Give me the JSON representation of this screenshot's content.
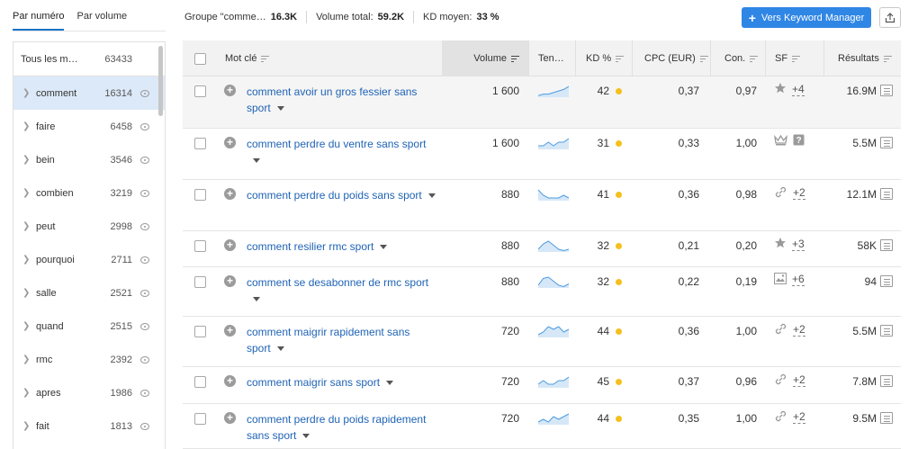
{
  "sort_tabs": {
    "by_number": "Par numéro",
    "by_volume": "Par volume"
  },
  "groups": {
    "all": {
      "label": "Tous les m…",
      "count": "63433"
    },
    "items": [
      {
        "label": "comment",
        "count": "16314",
        "active": true
      },
      {
        "label": "faire",
        "count": "6458"
      },
      {
        "label": "bein",
        "count": "3546"
      },
      {
        "label": "combien",
        "count": "3219"
      },
      {
        "label": "peut",
        "count": "2998"
      },
      {
        "label": "pourquoi",
        "count": "2711"
      },
      {
        "label": "salle",
        "count": "2521"
      },
      {
        "label": "quand",
        "count": "2515"
      },
      {
        "label": "rmc",
        "count": "2392"
      },
      {
        "label": "apres",
        "count": "1986"
      },
      {
        "label": "fait",
        "count": "1813"
      }
    ]
  },
  "stats": {
    "group_label": "Groupe \"comme…",
    "group_value": "16.3K",
    "volume_label": "Volume total:",
    "volume_value": "59.2K",
    "kd_label": "KD moyen:",
    "kd_value": "33 %"
  },
  "toolbar": {
    "keyword_manager_label": "Vers Keyword Manager"
  },
  "table": {
    "headers": {
      "keyword": "Mot clé",
      "volume": "Volume",
      "trend": "Ten…",
      "kd": "KD %",
      "cpc": "CPC (EUR)",
      "com": "Con.",
      "sf": "SF",
      "results": "Résultats"
    },
    "rows": [
      {
        "keyword": "comment avoir un gros fessier sans sport",
        "volume": "1 600",
        "kd": "42",
        "cpc": "0,37",
        "com": "0,97",
        "sf_icon": "star-icon",
        "sf_more": "+4",
        "results": "16.9M",
        "trend": [
          4,
          5,
          5,
          6,
          7,
          8,
          10
        ]
      },
      {
        "keyword": "comment perdre du ventre sans sport",
        "volume": "1 600",
        "kd": "31",
        "cpc": "0,33",
        "com": "1,00",
        "sf_icon": "crown-icon",
        "sf_icon2": "question-icon",
        "sf_more": "",
        "results": "5.5M",
        "trend": [
          4,
          4,
          5,
          4,
          5,
          5,
          6
        ]
      },
      {
        "keyword": "comment perdre du poids sans sport",
        "volume": "880",
        "kd": "41",
        "cpc": "0,36",
        "com": "0,98",
        "sf_icon": "link-icon",
        "sf_more": "+2",
        "results": "12.1M",
        "trend": [
          7,
          5,
          4,
          4,
          4,
          5,
          4
        ]
      },
      {
        "keyword": "comment resilier rmc sport",
        "volume": "880",
        "kd": "32",
        "cpc": "0,21",
        "com": "0,20",
        "sf_icon": "star-icon",
        "sf_more": "+3",
        "results": "58K",
        "trend": [
          3,
          7,
          9,
          6,
          3,
          2,
          3
        ]
      },
      {
        "keyword": "comment se desabonner de rmc sport",
        "volume": "880",
        "kd": "32",
        "cpc": "0,22",
        "com": "0,19",
        "sf_icon": "image-icon",
        "sf_more": "+6",
        "results": "94",
        "trend": [
          3,
          8,
          9,
          6,
          3,
          2,
          4
        ]
      },
      {
        "keyword": "comment maigrir rapidement sans sport",
        "volume": "720",
        "kd": "44",
        "cpc": "0,36",
        "com": "1,00",
        "sf_icon": "link-icon",
        "sf_more": "+2",
        "results": "5.5M",
        "trend": [
          4,
          5,
          7,
          6,
          7,
          5,
          6
        ]
      },
      {
        "keyword": "comment maigrir sans sport",
        "volume": "720",
        "kd": "45",
        "cpc": "0,37",
        "com": "0,96",
        "sf_icon": "link-icon",
        "sf_more": "+2",
        "results": "7.8M",
        "trend": [
          4,
          5,
          4,
          4,
          5,
          5,
          6
        ]
      },
      {
        "keyword": "comment perdre du poids rapidement sans sport",
        "volume": "720",
        "kd": "44",
        "cpc": "0,35",
        "com": "1,00",
        "sf_icon": "link-icon",
        "sf_more": "+2",
        "results": "9.5M",
        "trend": [
          4,
          5,
          4,
          6,
          5,
          6,
          7
        ]
      }
    ]
  },
  "colors": {
    "accent": "#2f86e5",
    "link": "#1f63b5",
    "kd_dot": "#f5c01d",
    "active_group": "#dce9f8"
  }
}
